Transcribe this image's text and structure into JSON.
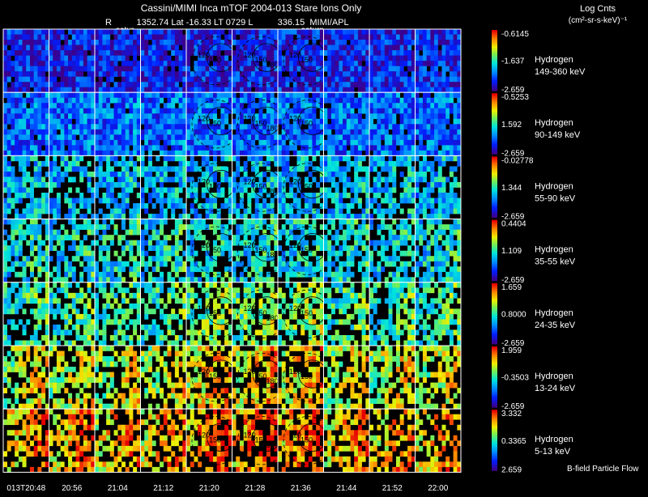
{
  "header": {
    "title": "Cassini/MIMI Inca mTOF  2004-013    Stare    Ions Only",
    "subtitle": "R          1352.74 Lat -16.33 LT 0729 L          336.15  MIMI/APL",
    "label_saturn_left": "satur",
    "label_saturn_right": "saturn",
    "colorbar_units_line1": "Log Cnts",
    "colorbar_units_line2": "(cm²-sr-s-keV)⁻¹"
  },
  "rows": [
    {
      "species": "Hydrogen",
      "energy": "149-360 keV",
      "cmax": "-0.6145",
      "cmid": "-1.637",
      "cmin": "-2.659",
      "level": 0.25
    },
    {
      "species": "Hydrogen",
      "energy": "90-149 keV",
      "cmax": "-0.5253",
      "cmid": "1.592",
      "cmin": "-2.659",
      "level": 0.35
    },
    {
      "species": "Hydrogen",
      "energy": "55-90 keV",
      "cmax": "-0.02778",
      "cmid": "1.344",
      "cmin": "-2.659",
      "level": 0.45
    },
    {
      "species": "Hydrogen",
      "energy": "35-55 keV",
      "cmax": "0.4404",
      "cmid": "1.109",
      "cmin": "-2.659",
      "level": 0.5
    },
    {
      "species": "Hydrogen",
      "energy": "24-35 keV",
      "cmax": "1.659",
      "cmid": "0.8000",
      "cmin": "-2.659",
      "level": 0.55
    },
    {
      "species": "Hydrogen",
      "energy": "13-24 keV",
      "cmax": "1.959",
      "cmid": "-0.3503",
      "cmin": "-2.659",
      "level": 0.7
    },
    {
      "species": "Hydrogen",
      "energy": "5-13 keV",
      "cmax": "3.332",
      "cmid": "0.3365",
      "cmin": "2.659",
      "level": 0.8
    }
  ],
  "time_labels": [
    "013T20:48",
    "20:56",
    "21:04",
    "21:12",
    "21:20",
    "21:28",
    "21:36",
    "21:44",
    "21:52",
    "22:00"
  ],
  "contours": [
    {
      "col": 4,
      "labels": [
        "120",
        "150"
      ]
    },
    {
      "col": 5,
      "labels": [
        "120",
        "150",
        "180"
      ]
    },
    {
      "col": 6,
      "labels": [
        "120",
        "150"
      ]
    }
  ],
  "footer_note": "B-field Particle Flow",
  "colors": {
    "background": "#000000",
    "text": "#ffffff",
    "grid": "#ffffff"
  }
}
